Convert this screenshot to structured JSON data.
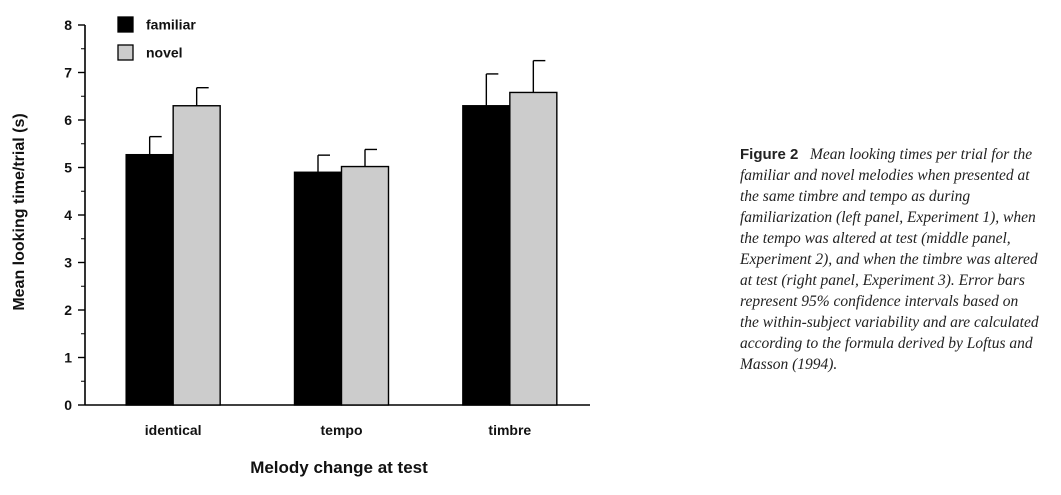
{
  "chart_data": {
    "type": "bar",
    "xlabel": "Melody change at test",
    "ylabel": "Mean looking time/trial (s)",
    "ylim": [
      0,
      8
    ],
    "yticks": [
      "0",
      "1",
      "2",
      "3",
      "4",
      "5",
      "6",
      "7",
      "8"
    ],
    "categories": [
      "identical",
      "tempo",
      "timbre"
    ],
    "series": [
      {
        "name": "familiar",
        "color": "#000000",
        "values": [
          5.27,
          4.9,
          6.3
        ],
        "error": [
          0.38,
          0.36,
          0.67
        ]
      },
      {
        "name": "novel",
        "color": "#cccccc",
        "values": [
          6.3,
          5.02,
          6.58
        ],
        "error": [
          0.38,
          0.36,
          0.67
        ]
      }
    ],
    "legend_position": "top-left",
    "grid": false
  },
  "caption": {
    "label": "Figure 2",
    "text": "Mean looking times per trial for the familiar and novel melodies when presented at the same timbre and tempo as during familiarization (left panel, Experiment 1), when the tempo was altered at test (middle panel, Experiment 2), and when the timbre was altered at test (right panel, Experiment 3). Error bars represent 95% confidence intervals based on the within-subject variability and are calculated according to the formula derived by Loftus and Masson (1994)."
  }
}
